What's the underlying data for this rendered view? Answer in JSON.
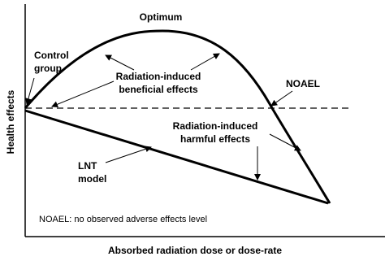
{
  "axes": {
    "y_label": "Health effects",
    "x_label": "Absorbed radiation dose or dose-rate"
  },
  "annotations": {
    "optimum": "Optimum",
    "control_group": [
      "Control",
      "group"
    ],
    "beneficial": [
      "Radiation-induced",
      "beneficial effects"
    ],
    "noael": "NOAEL",
    "harmful": [
      "Radiation-induced",
      "harmful effects"
    ],
    "lnt": [
      "LNT",
      "model"
    ],
    "footnote": "NOAEL: no observed adverse effects level"
  }
}
